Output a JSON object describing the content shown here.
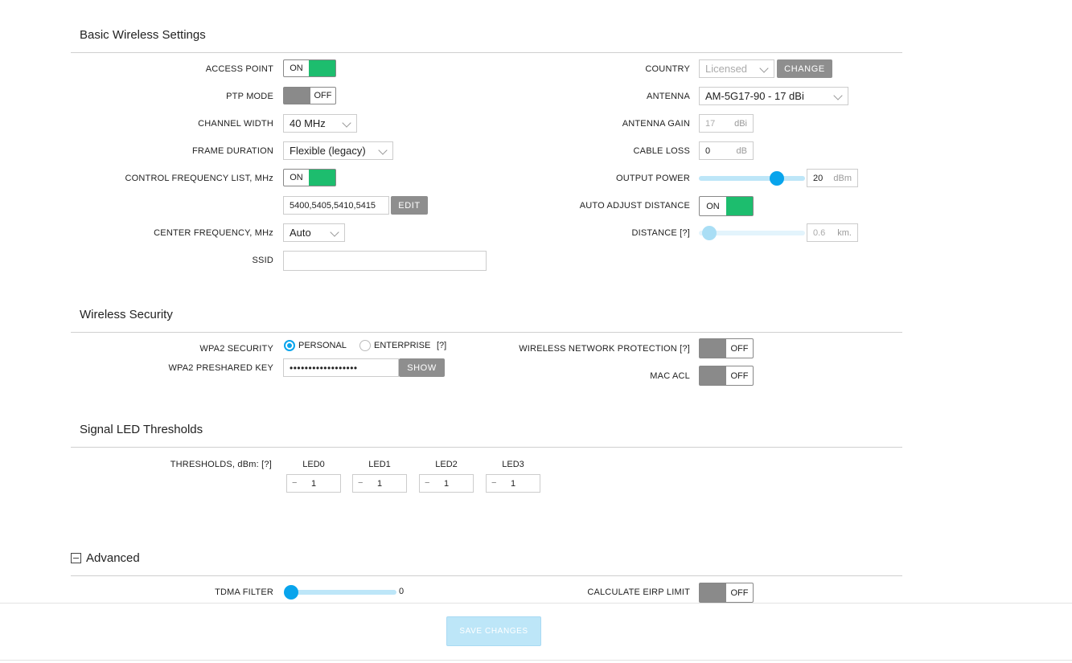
{
  "sections": {
    "basic": "Basic Wireless Settings",
    "security": "Wireless Security",
    "led": "Signal LED Thresholds",
    "advanced": "Advanced"
  },
  "basic": {
    "access_point": {
      "label": "ACCESS POINT",
      "state": "ON"
    },
    "ptp_mode": {
      "label": "PTP MODE",
      "state": "OFF"
    },
    "channel_width": {
      "label": "CHANNEL WIDTH",
      "value": "40 MHz"
    },
    "frame_duration": {
      "label": "FRAME DURATION",
      "value": "Flexible (legacy)"
    },
    "control_freq_list": {
      "label": "CONTROL FREQUENCY LIST, MHz",
      "state": "ON",
      "value": "5400,5405,5410,5415",
      "edit_label": "EDIT"
    },
    "center_freq": {
      "label": "CENTER FREQUENCY, MHz",
      "value": "Auto"
    },
    "ssid": {
      "label": "SSID",
      "value": ""
    },
    "country": {
      "label": "COUNTRY",
      "value": "Licensed",
      "change_label": "CHANGE"
    },
    "antenna": {
      "label": "ANTENNA",
      "value": "AM-5G17-90 - 17 dBi"
    },
    "antenna_gain": {
      "label": "ANTENNA GAIN",
      "value": "17",
      "unit": "dBi"
    },
    "cable_loss": {
      "label": "CABLE LOSS",
      "value": "0",
      "unit": "dB"
    },
    "output_power": {
      "label": "OUTPUT POWER",
      "value": "20",
      "unit": "dBm",
      "slider_fraction": 0.74
    },
    "auto_adjust_distance": {
      "label": "AUTO ADJUST DISTANCE",
      "state": "ON"
    },
    "distance": {
      "label": "DISTANCE [?]",
      "value": "0.6",
      "unit": "km.",
      "slider_fraction": 0.0
    }
  },
  "security": {
    "wpa2": {
      "label": "WPA2 SECURITY",
      "opt_personal": "PERSONAL",
      "opt_enterprise": "ENTERPRISE",
      "help": "[?]",
      "selected": "PERSONAL"
    },
    "psk": {
      "label": "WPA2 PRESHARED KEY",
      "value": "••••••••••••••••••",
      "show_label": "SHOW"
    },
    "wnp": {
      "label": "WIRELESS NETWORK PROTECTION [?]",
      "state": "OFF"
    },
    "mac_acl": {
      "label": "MAC ACL",
      "state": "OFF"
    }
  },
  "led": {
    "label": "THRESHOLDS, dBm: [?]",
    "minus": "−",
    "items": [
      {
        "name": "LED0",
        "value": "1"
      },
      {
        "name": "LED1",
        "value": "1"
      },
      {
        "name": "LED2",
        "value": "1"
      },
      {
        "name": "LED3",
        "value": "1"
      }
    ]
  },
  "advanced": {
    "tdma_filter": {
      "label": "TDMA FILTER",
      "value": "0",
      "slider_fraction": 0.0
    },
    "calc_eirp": {
      "label": "CALCULATE EIRP LIMIT",
      "state": "OFF"
    }
  },
  "footer": {
    "save_label": "SAVE CHANGES"
  },
  "colors": {
    "toggle_on": "#1dbd6e",
    "toggle_off": "#8a8a8a",
    "accent": "#08a4ec"
  }
}
